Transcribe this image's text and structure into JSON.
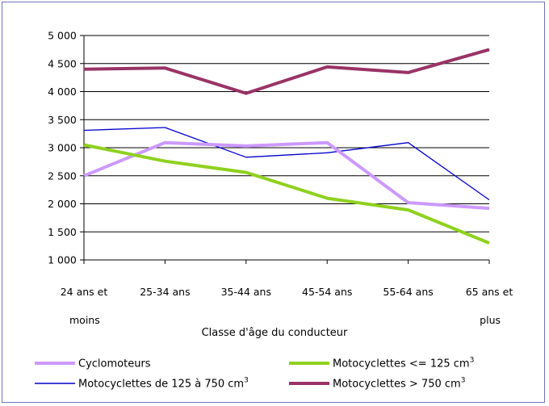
{
  "chart_data": {
    "type": "line",
    "title": "",
    "xlabel": "Classe d'âge du conducteur",
    "ylabel": "",
    "ylim": [
      1000,
      5000
    ],
    "y_ticks": [
      "5 000",
      "4 500",
      "4 000",
      "3 500",
      "3 000",
      "2 500",
      "2 000",
      "1 500",
      "1 000"
    ],
    "y_tick_values": [
      5000,
      4500,
      4000,
      3500,
      3000,
      2500,
      2000,
      1500,
      1000
    ],
    "categories": [
      [
        "24 ans et",
        "moins"
      ],
      [
        "25-34 ans",
        ""
      ],
      [
        "35-44 ans",
        ""
      ],
      [
        "45-54 ans",
        ""
      ],
      [
        "55-64 ans",
        ""
      ],
      [
        "65 ans et",
        "plus"
      ]
    ],
    "grid": true,
    "legend_position": "bottom",
    "series": [
      {
        "name": "Cyclomoteurs",
        "unit_sup": "",
        "color": "#cc99ff",
        "width": 4,
        "values": [
          2500,
          3090,
          3030,
          3090,
          2020,
          1920
        ]
      },
      {
        "name": "Motocyclettes <= 125 cm",
        "unit_sup": "3",
        "color": "#8fd11f",
        "width": 4,
        "values": [
          3050,
          2760,
          2560,
          2100,
          1890,
          1300
        ]
      },
      {
        "name": "Motocyclettes de 125 à 750 cm",
        "unit_sup": "3",
        "color": "#0000cc",
        "width": 1.3,
        "values": [
          3310,
          3360,
          2830,
          2910,
          3090,
          2070
        ]
      },
      {
        "name": "Motocyclettes > 750 cm",
        "unit_sup": "3",
        "color": "#993366",
        "width": 4,
        "values": [
          4400,
          4420,
          3970,
          4440,
          4340,
          4750
        ]
      }
    ]
  }
}
